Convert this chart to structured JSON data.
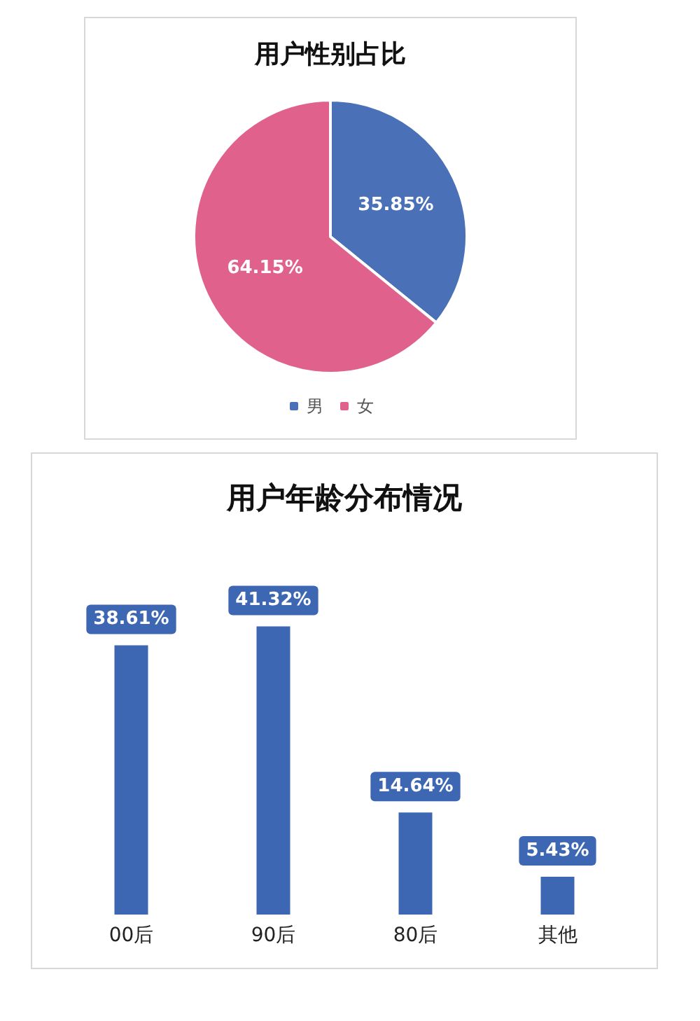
{
  "chart_data": [
    {
      "type": "pie",
      "title": "用户性别占比",
      "categories": [
        "男",
        "女"
      ],
      "values": [
        35.85,
        64.15
      ],
      "colors": [
        "#4a70b8",
        "#e0618c"
      ],
      "value_labels": [
        "35.85%",
        "64.15%"
      ],
      "legend": "bottom"
    },
    {
      "type": "bar",
      "title": "用户年龄分布情况",
      "categories": [
        "00后",
        "90后",
        "80后",
        "其他"
      ],
      "values": [
        38.61,
        41.32,
        14.64,
        5.43
      ],
      "color": "#3d67b3",
      "value_labels": [
        "38.61%",
        "41.32%",
        "14.64%",
        "5.43%"
      ]
    }
  ]
}
